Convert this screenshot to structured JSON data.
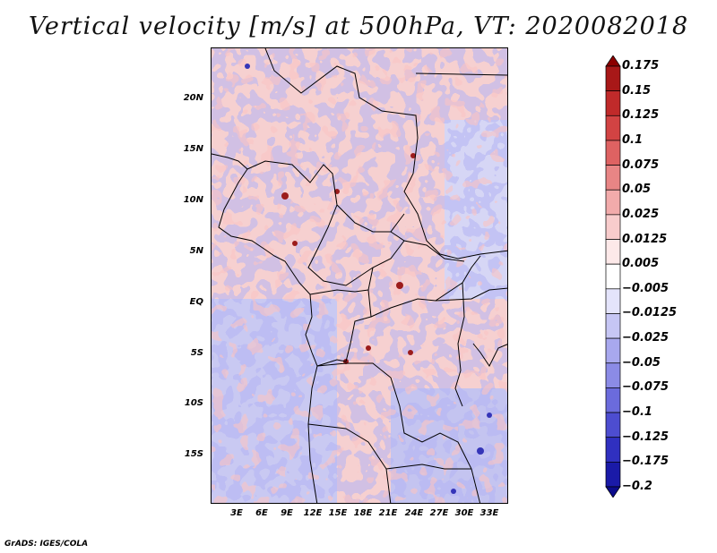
{
  "title": "Vertical velocity [m/s] at 500hPa, VT: 2020082018",
  "credit": "GrADS: IGES/COLA",
  "lat_labels": [
    "20N",
    "15N",
    "10N",
    "5N",
    "EQ",
    "5S",
    "10S",
    "15S"
  ],
  "lon_labels": [
    "3E",
    "6E",
    "9E",
    "12E",
    "15E",
    "18E",
    "21E",
    "24E",
    "27E",
    "30E",
    "33E"
  ],
  "colorbar": {
    "labels": [
      "0.175",
      "0.15",
      "0.125",
      "0.1",
      "0.075",
      "0.05",
      "0.025",
      "0.0125",
      "0.005",
      "−0.005",
      "−0.0125",
      "−0.025",
      "−0.05",
      "−0.075",
      "−0.1",
      "−0.125",
      "−0.175",
      "−0.2"
    ],
    "colors": [
      "#8b0000",
      "#a81818",
      "#c02a2a",
      "#d24343",
      "#de6262",
      "#e88585",
      "#f2abab",
      "#f8cccc",
      "#fde9e9",
      "#ffffff",
      "#e4e4fb",
      "#c6c6f4",
      "#a8a8ee",
      "#8b8be6",
      "#6b6bdc",
      "#4d4dd0",
      "#3030c0",
      "#1a1aa8",
      "#0c0c8c"
    ]
  }
}
